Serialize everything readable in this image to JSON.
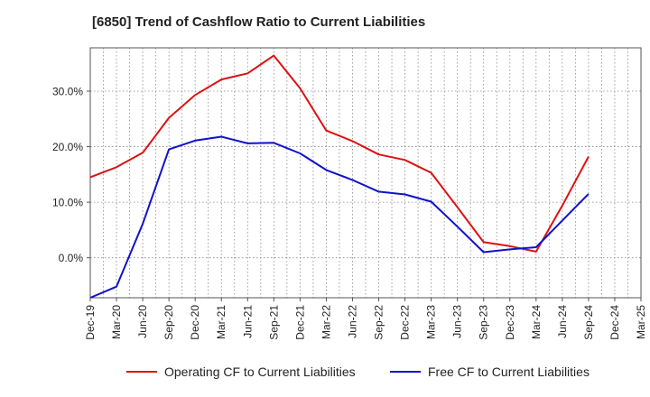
{
  "chart_data": {
    "type": "line",
    "title": "[6850]  Trend of Cashflow Ratio to Current Liabilities",
    "x": [
      "Dec-19",
      "Mar-20",
      "Jun-20",
      "Sep-20",
      "Dec-20",
      "Mar-21",
      "Jun-21",
      "Sep-21",
      "Dec-21",
      "Mar-22",
      "Jun-22",
      "Sep-22",
      "Dec-22",
      "Mar-23",
      "Jun-23",
      "Sep-23",
      "Dec-23",
      "Mar-24",
      "Jun-24",
      "Sep-24",
      "Dec-24",
      "Mar-25"
    ],
    "y_ticks": [
      0,
      10,
      20,
      30
    ],
    "y_tick_labels": [
      "0.0%",
      "10.0%",
      "20.0%",
      "30.0%"
    ],
    "ylim": [
      -7.2,
      37.8
    ],
    "grid": true,
    "legend_position": "bottom",
    "series": [
      {
        "name": "Operating CF to Current Liabilities",
        "color": "#dd1111",
        "values": [
          14.5,
          16.3,
          18.9,
          25.2,
          29.3,
          32.1,
          33.2,
          36.4,
          30.5,
          22.9,
          21.0,
          18.6,
          17.6,
          15.3,
          9.1,
          2.8,
          2.1,
          1.1,
          9.4,
          18.2,
          null,
          null
        ]
      },
      {
        "name": "Free CF to Current Liabilities",
        "color": "#1111cc",
        "values": [
          -7.2,
          -5.2,
          6.1,
          19.5,
          21.1,
          21.8,
          20.6,
          20.7,
          18.8,
          15.8,
          14.0,
          11.9,
          11.4,
          10.1,
          5.6,
          1.0,
          1.5,
          1.9,
          6.7,
          11.5,
          null,
          null
        ]
      }
    ]
  }
}
